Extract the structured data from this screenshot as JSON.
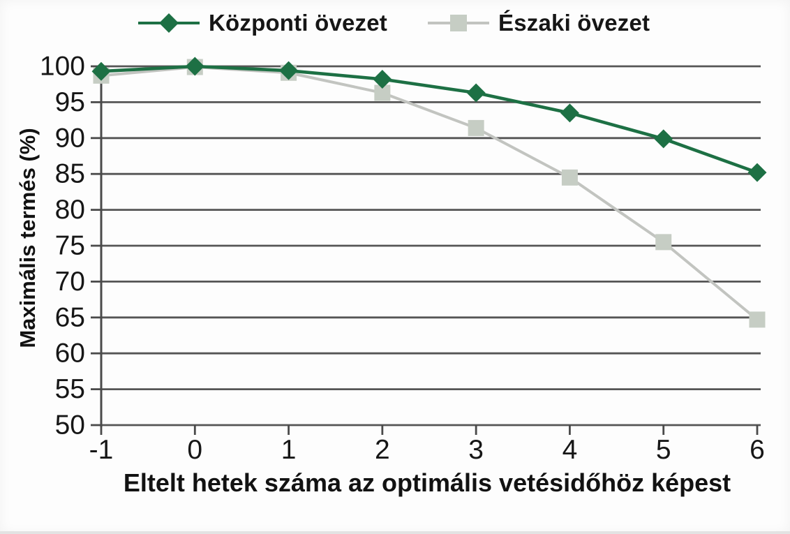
{
  "chart_data": {
    "type": "line",
    "title": "",
    "x": [
      -1,
      0,
      1,
      2,
      3,
      4,
      5,
      6
    ],
    "xticks": [
      -1,
      0,
      1,
      2,
      3,
      4,
      5,
      6
    ],
    "series": [
      {
        "name": "Központi övezet",
        "marker": "diamond",
        "line_color": "#1d7044",
        "marker_color": "#1d7044",
        "values": [
          99.3,
          100,
          99.4,
          98.2,
          96.3,
          93.5,
          89.9,
          85.2
        ]
      },
      {
        "name": "Északi övezet",
        "marker": "square",
        "line_color": "#c2c4c0",
        "marker_color": "#c6cdc4",
        "values": [
          98.7,
          99.9,
          99.1,
          96.3,
          91.4,
          84.5,
          75.5,
          64.7
        ]
      }
    ],
    "xlabel": "Eltelt hetek száma az optimális vetésidőhöz képest",
    "ylabel": "Maximális termés (%)",
    "ylim": [
      50,
      100
    ],
    "ytick_step": 5,
    "grid": "horizontal",
    "legend_position": "top",
    "gridline_color": "#555555",
    "axis_color": "#4a4a4a",
    "text_color": "#161616"
  }
}
